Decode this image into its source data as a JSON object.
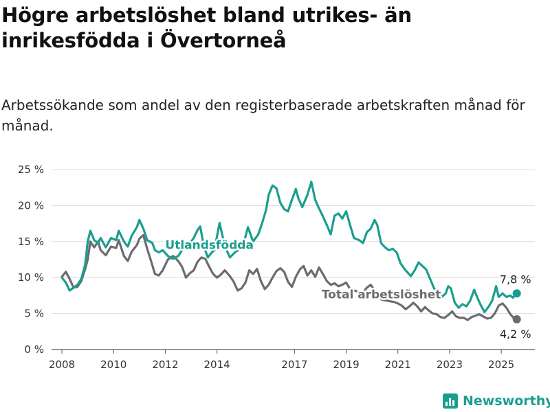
{
  "header": {
    "title": "Högre arbetslöshet bland utrikes- än inrikesfödda i Övertorneå",
    "subtitle": "Arbetssökande som andel av den registerbaserade arbetskraften månad för månad."
  },
  "brand": {
    "name": "Newsworthy",
    "icon": "bar-chart-logo-icon",
    "color": "#1a9e8f"
  },
  "chart_data": {
    "type": "line",
    "title": "Högre arbetslöshet bland utrikes- än inrikesfödda i Övertorneå",
    "subtitle": "Arbetssökande som andel av den registerbaserade arbetskraften månad för månad.",
    "xlim": [
      2007.6,
      2026.3
    ],
    "ylim": [
      0,
      25
    ],
    "x_ticks": [
      {
        "value": 2008,
        "label": "2008"
      },
      {
        "value": 2010,
        "label": "2010"
      },
      {
        "value": 2012,
        "label": "2012"
      },
      {
        "value": 2014,
        "label": "2014"
      },
      {
        "value": 2017,
        "label": "2017"
      },
      {
        "value": 2019,
        "label": "2019"
      },
      {
        "value": 2021,
        "label": "2021"
      },
      {
        "value": 2023,
        "label": "2023"
      },
      {
        "value": 2025,
        "label": "2025"
      }
    ],
    "y_ticks": [
      {
        "value": 0,
        "label": "0 %"
      },
      {
        "value": 5,
        "label": "5 %"
      },
      {
        "value": 10,
        "label": "10 %"
      },
      {
        "value": 15,
        "label": "15 %"
      },
      {
        "value": 20,
        "label": "20 %"
      },
      {
        "value": 25,
        "label": "25 %"
      }
    ],
    "grid": true,
    "legend": "inline labels",
    "series": [
      {
        "name": "Utlandsfödda",
        "color": "#1a9e8f",
        "end_label": "7,8 %",
        "points": [
          [
            2008.0,
            10.0
          ],
          [
            2008.15,
            9.3
          ],
          [
            2008.3,
            8.2
          ],
          [
            2008.45,
            8.6
          ],
          [
            2008.6,
            9.0
          ],
          [
            2008.75,
            9.8
          ],
          [
            2008.9,
            11.8
          ],
          [
            2009.0,
            15.0
          ],
          [
            2009.1,
            16.5
          ],
          [
            2009.25,
            15.2
          ],
          [
            2009.4,
            14.8
          ],
          [
            2009.5,
            15.5
          ],
          [
            2009.7,
            14.2
          ],
          [
            2009.9,
            15.5
          ],
          [
            2010.1,
            15.2
          ],
          [
            2010.2,
            16.5
          ],
          [
            2010.4,
            15.0
          ],
          [
            2010.55,
            14.3
          ],
          [
            2010.7,
            15.8
          ],
          [
            2010.9,
            17.0
          ],
          [
            2011.0,
            18.0
          ],
          [
            2011.15,
            16.8
          ],
          [
            2011.3,
            15.2
          ],
          [
            2011.5,
            14.8
          ],
          [
            2011.6,
            13.8
          ],
          [
            2011.75,
            13.5
          ],
          [
            2011.9,
            13.8
          ],
          [
            2012.1,
            13.0
          ],
          [
            2012.3,
            12.6
          ],
          [
            2012.5,
            13.0
          ],
          [
            2012.65,
            13.8
          ],
          [
            2012.8,
            14.2
          ],
          [
            2012.95,
            14.7
          ],
          [
            2013.1,
            15.5
          ],
          [
            2013.25,
            16.6
          ],
          [
            2013.35,
            17.1
          ],
          [
            2013.5,
            14.2
          ],
          [
            2013.65,
            12.8
          ],
          [
            2013.8,
            13.5
          ],
          [
            2013.9,
            13.8
          ],
          [
            2014.1,
            17.6
          ],
          [
            2014.3,
            14.4
          ],
          [
            2014.5,
            12.8
          ],
          [
            2014.7,
            13.5
          ],
          [
            2015.0,
            14.3
          ],
          [
            2015.2,
            17.0
          ],
          [
            2015.4,
            15.0
          ],
          [
            2015.6,
            16.0
          ],
          [
            2015.75,
            17.6
          ],
          [
            2015.9,
            19.4
          ],
          [
            2016.0,
            21.5
          ],
          [
            2016.15,
            22.8
          ],
          [
            2016.3,
            22.4
          ],
          [
            2016.45,
            20.4
          ],
          [
            2016.6,
            19.5
          ],
          [
            2016.75,
            19.2
          ],
          [
            2016.9,
            20.8
          ],
          [
            2017.05,
            22.3
          ],
          [
            2017.15,
            21.0
          ],
          [
            2017.3,
            19.8
          ],
          [
            2017.5,
            21.5
          ],
          [
            2017.65,
            23.3
          ],
          [
            2017.8,
            20.8
          ],
          [
            2017.95,
            19.6
          ],
          [
            2018.1,
            18.5
          ],
          [
            2018.25,
            17.3
          ],
          [
            2018.4,
            16.0
          ],
          [
            2018.55,
            18.6
          ],
          [
            2018.7,
            18.9
          ],
          [
            2018.85,
            18.2
          ],
          [
            2019.0,
            19.2
          ],
          [
            2019.15,
            17.3
          ],
          [
            2019.3,
            15.5
          ],
          [
            2019.5,
            15.2
          ],
          [
            2019.65,
            14.8
          ],
          [
            2019.8,
            16.3
          ],
          [
            2019.95,
            16.8
          ],
          [
            2020.1,
            18.0
          ],
          [
            2020.2,
            17.3
          ],
          [
            2020.35,
            14.8
          ],
          [
            2020.5,
            14.2
          ],
          [
            2020.65,
            13.8
          ],
          [
            2020.8,
            14.0
          ],
          [
            2020.95,
            13.5
          ],
          [
            2021.1,
            12.0
          ],
          [
            2021.25,
            11.2
          ],
          [
            2021.35,
            10.8
          ],
          [
            2021.5,
            10.2
          ],
          [
            2021.65,
            11.0
          ],
          [
            2021.8,
            12.1
          ],
          [
            2021.95,
            11.6
          ],
          [
            2022.1,
            11.1
          ],
          [
            2022.25,
            9.8
          ],
          [
            2022.4,
            8.5
          ],
          [
            2022.55,
            8.0
          ],
          [
            2022.7,
            7.3
          ],
          [
            2022.85,
            7.8
          ],
          [
            2022.95,
            8.8
          ],
          [
            2023.05,
            8.5
          ],
          [
            2023.2,
            6.5
          ],
          [
            2023.35,
            5.8
          ],
          [
            2023.5,
            6.3
          ],
          [
            2023.65,
            6.0
          ],
          [
            2023.8,
            6.8
          ],
          [
            2023.95,
            8.3
          ],
          [
            2024.1,
            7.0
          ],
          [
            2024.2,
            6.2
          ],
          [
            2024.35,
            5.2
          ],
          [
            2024.5,
            5.9
          ],
          [
            2024.65,
            6.8
          ],
          [
            2024.8,
            8.8
          ],
          [
            2024.9,
            7.3
          ],
          [
            2025.05,
            7.8
          ],
          [
            2025.2,
            7.3
          ],
          [
            2025.35,
            7.5
          ],
          [
            2025.45,
            7.2
          ],
          [
            2025.6,
            7.8
          ]
        ]
      },
      {
        "name": "Total arbetslöshet",
        "color": "#6b6b70",
        "end_label": "4,2 %",
        "points": [
          [
            2008.0,
            10.1
          ],
          [
            2008.15,
            10.8
          ],
          [
            2008.3,
            9.8
          ],
          [
            2008.45,
            8.6
          ],
          [
            2008.6,
            8.7
          ],
          [
            2008.75,
            9.5
          ],
          [
            2008.9,
            11.2
          ],
          [
            2009.0,
            12.5
          ],
          [
            2009.1,
            15.0
          ],
          [
            2009.25,
            14.2
          ],
          [
            2009.4,
            15.0
          ],
          [
            2009.5,
            13.8
          ],
          [
            2009.7,
            13.1
          ],
          [
            2009.9,
            14.3
          ],
          [
            2010.1,
            14.1
          ],
          [
            2010.2,
            15.2
          ],
          [
            2010.4,
            13.0
          ],
          [
            2010.55,
            12.3
          ],
          [
            2010.7,
            13.6
          ],
          [
            2010.9,
            14.5
          ],
          [
            2011.0,
            15.4
          ],
          [
            2011.15,
            15.9
          ],
          [
            2011.3,
            14.0
          ],
          [
            2011.45,
            12.3
          ],
          [
            2011.6,
            10.5
          ],
          [
            2011.75,
            10.3
          ],
          [
            2011.9,
            11.0
          ],
          [
            2012.1,
            12.5
          ],
          [
            2012.3,
            13.0
          ],
          [
            2012.5,
            12.3
          ],
          [
            2012.65,
            11.5
          ],
          [
            2012.8,
            10.0
          ],
          [
            2012.95,
            10.6
          ],
          [
            2013.1,
            11.0
          ],
          [
            2013.25,
            12.2
          ],
          [
            2013.4,
            12.8
          ],
          [
            2013.55,
            12.6
          ],
          [
            2013.7,
            11.5
          ],
          [
            2013.85,
            10.5
          ],
          [
            2014.0,
            10.0
          ],
          [
            2014.15,
            10.4
          ],
          [
            2014.3,
            11.0
          ],
          [
            2014.5,
            10.2
          ],
          [
            2014.65,
            9.4
          ],
          [
            2014.8,
            8.2
          ],
          [
            2014.95,
            8.5
          ],
          [
            2015.1,
            9.3
          ],
          [
            2015.25,
            11.0
          ],
          [
            2015.4,
            10.5
          ],
          [
            2015.55,
            11.2
          ],
          [
            2015.7,
            9.5
          ],
          [
            2015.85,
            8.4
          ],
          [
            2016.0,
            9.0
          ],
          [
            2016.15,
            10.0
          ],
          [
            2016.3,
            10.9
          ],
          [
            2016.45,
            11.3
          ],
          [
            2016.6,
            10.8
          ],
          [
            2016.75,
            9.4
          ],
          [
            2016.9,
            8.7
          ],
          [
            2017.05,
            10.1
          ],
          [
            2017.2,
            11.1
          ],
          [
            2017.35,
            11.6
          ],
          [
            2017.5,
            10.3
          ],
          [
            2017.65,
            11.0
          ],
          [
            2017.8,
            10.1
          ],
          [
            2017.95,
            11.4
          ],
          [
            2018.1,
            10.5
          ],
          [
            2018.25,
            9.5
          ],
          [
            2018.4,
            9.0
          ],
          [
            2018.55,
            9.2
          ],
          [
            2018.7,
            8.8
          ],
          [
            2018.85,
            9.0
          ],
          [
            2019.0,
            9.3
          ],
          [
            2019.15,
            8.4
          ],
          [
            2019.3,
            8.2
          ],
          [
            2019.5,
            8.0
          ],
          [
            2019.65,
            7.9
          ],
          [
            2019.8,
            8.6
          ],
          [
            2019.95,
            9.0
          ],
          [
            2020.1,
            8.2
          ],
          [
            2020.25,
            7.3
          ],
          [
            2020.4,
            6.9
          ],
          [
            2020.55,
            6.8
          ],
          [
            2020.7,
            6.7
          ],
          [
            2020.85,
            6.6
          ],
          [
            2021.0,
            6.4
          ],
          [
            2021.15,
            6.1
          ],
          [
            2021.3,
            5.6
          ],
          [
            2021.45,
            6.0
          ],
          [
            2021.6,
            6.5
          ],
          [
            2021.75,
            6.0
          ],
          [
            2021.9,
            5.3
          ],
          [
            2022.05,
            5.9
          ],
          [
            2022.2,
            5.4
          ],
          [
            2022.35,
            5.0
          ],
          [
            2022.5,
            4.9
          ],
          [
            2022.65,
            4.5
          ],
          [
            2022.8,
            4.4
          ],
          [
            2022.95,
            4.8
          ],
          [
            2023.1,
            5.3
          ],
          [
            2023.25,
            4.6
          ],
          [
            2023.4,
            4.4
          ],
          [
            2023.55,
            4.4
          ],
          [
            2023.7,
            4.1
          ],
          [
            2023.85,
            4.5
          ],
          [
            2024.0,
            4.7
          ],
          [
            2024.15,
            4.9
          ],
          [
            2024.3,
            4.6
          ],
          [
            2024.45,
            4.3
          ],
          [
            2024.6,
            4.4
          ],
          [
            2024.75,
            5.0
          ],
          [
            2024.9,
            6.1
          ],
          [
            2025.05,
            6.4
          ],
          [
            2025.2,
            5.8
          ],
          [
            2025.35,
            4.9
          ],
          [
            2025.5,
            4.3
          ],
          [
            2025.6,
            4.2
          ]
        ]
      }
    ]
  }
}
